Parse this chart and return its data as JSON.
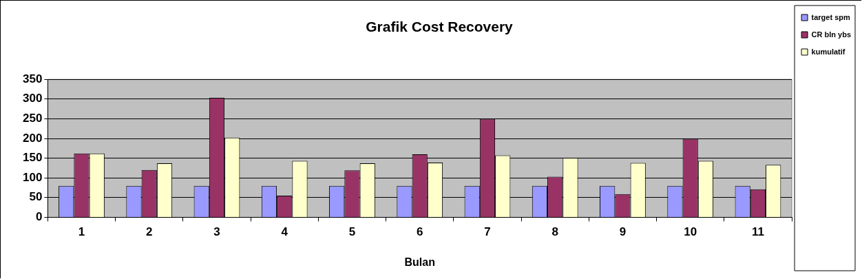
{
  "chart_data": {
    "type": "bar",
    "title": "Grafik Cost Recovery",
    "xlabel": "Bulan",
    "categories": [
      "1",
      "2",
      "3",
      "4",
      "5",
      "6",
      "7",
      "8",
      "9",
      "10",
      "11"
    ],
    "series": [
      {
        "name": "target spm",
        "color": "#9999ff",
        "values": [
          80,
          80,
          80,
          80,
          80,
          80,
          80,
          80,
          80,
          80,
          80
        ]
      },
      {
        "name": "CR bln ybs",
        "color": "#993366",
        "values": [
          162,
          120,
          303,
          55,
          119,
          160,
          250,
          103,
          59,
          199,
          71
        ]
      },
      {
        "name": "kumulatif",
        "color": "#ffffcc",
        "values": [
          162,
          137,
          202,
          143,
          137,
          139,
          157,
          151,
          138,
          143,
          133
        ]
      }
    ],
    "ylim": [
      0,
      350
    ],
    "yticks": [
      0,
      50,
      100,
      150,
      200,
      250,
      300,
      350
    ],
    "grid": "y",
    "legend": "top right"
  }
}
